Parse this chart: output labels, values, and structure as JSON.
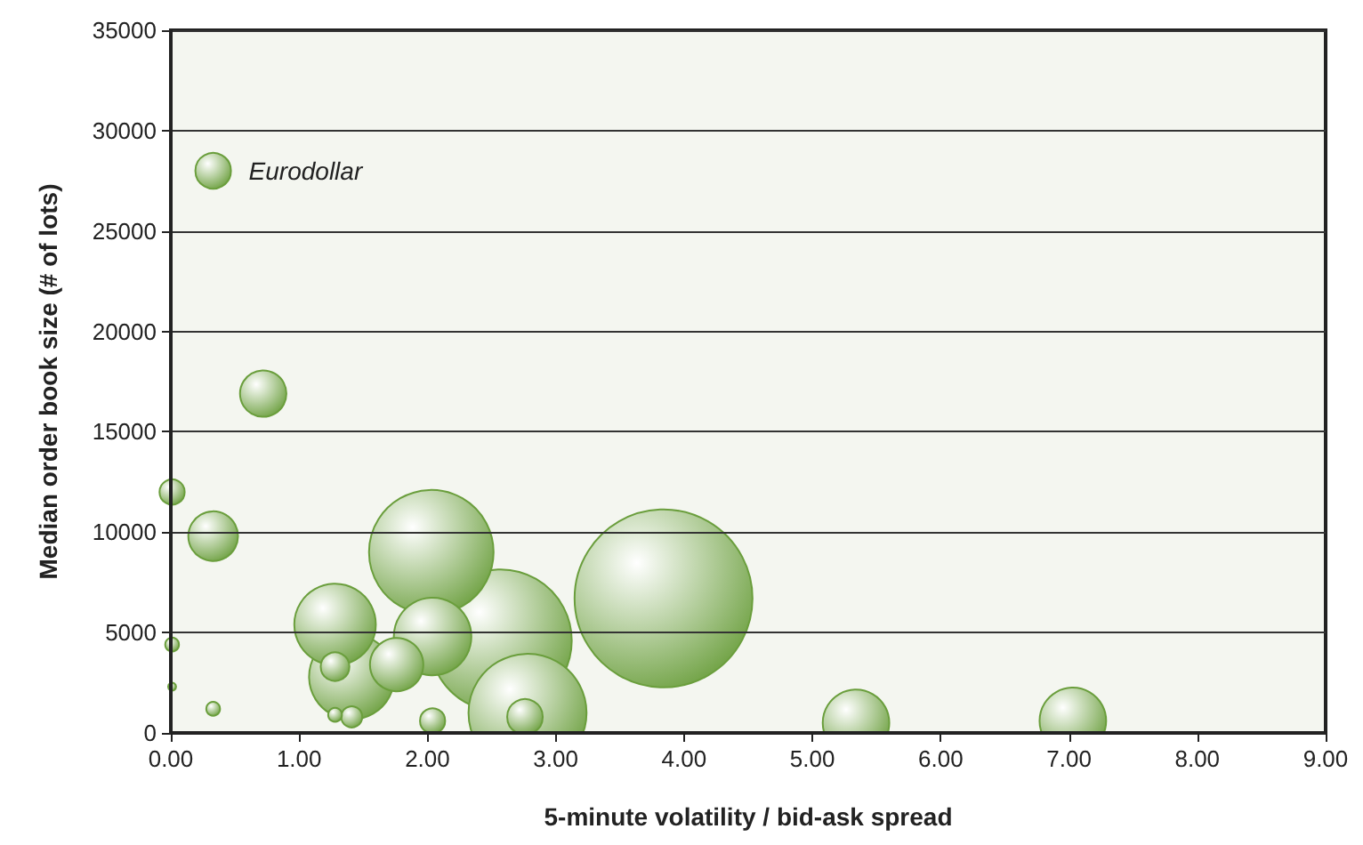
{
  "chart_data": {
    "type": "bubble",
    "xlabel": "5-minute volatility / bid-ask spread",
    "ylabel": "Median order book size (# of lots)",
    "x": [
      3.84,
      2.57,
      2.78,
      2.03,
      1.41,
      1.28,
      2.04,
      5.34,
      7.03,
      1.76,
      0.33,
      0.72,
      0.33,
      2.76,
      1.28,
      0.01,
      2.04,
      1.41,
      0.01,
      0.33,
      1.28,
      0.01
    ],
    "values": [
      6700,
      4600,
      1000,
      9000,
      2800,
      5400,
      4800,
      500,
      600,
      3400,
      9800,
      16900,
      28000,
      800,
      3300,
      12000,
      600,
      800,
      4400,
      1200,
      900,
      2300
    ],
    "sizes": [
      1,
      0.64,
      0.44,
      0.49,
      0.23,
      0.21,
      0.19,
      0.14,
      0.14,
      0.09,
      0.078,
      0.068,
      0.04,
      0.04,
      0.026,
      0.02,
      0.02,
      0.014,
      0.006,
      0.006,
      0.006,
      0.002
    ],
    "color": "#6a9e3c",
    "xlim": [
      0,
      9
    ],
    "xticks": [
      {
        "value": 0,
        "label": "0.00"
      },
      {
        "value": 1,
        "label": "1.00"
      },
      {
        "value": 2,
        "label": "2.00"
      },
      {
        "value": 3,
        "label": "3.00"
      },
      {
        "value": 4,
        "label": "4.00"
      },
      {
        "value": 5,
        "label": "5.00"
      },
      {
        "value": 6,
        "label": "6.00"
      },
      {
        "value": 7,
        "label": "7.00"
      },
      {
        "value": 8,
        "label": "8.00"
      },
      {
        "value": 9,
        "label": "9.00"
      }
    ],
    "ylim": [
      0,
      35000
    ],
    "yticks": [
      0,
      5000,
      10000,
      15000,
      20000,
      25000,
      30000,
      35000
    ],
    "annotations": [
      {
        "text": "Eurodollar",
        "x": 0.33,
        "y": 28000
      }
    ],
    "grid": "y",
    "marker": "circle"
  }
}
